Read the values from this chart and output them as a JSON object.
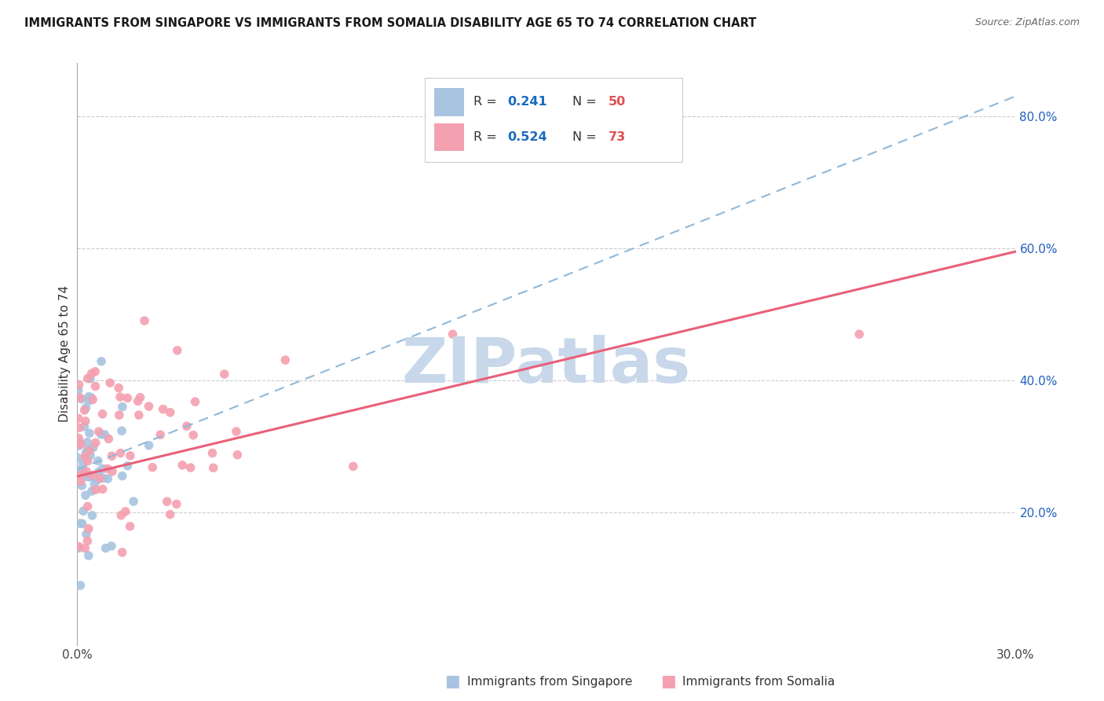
{
  "title": "IMMIGRANTS FROM SINGAPORE VS IMMIGRANTS FROM SOMALIA DISABILITY AGE 65 TO 74 CORRELATION CHART",
  "source": "Source: ZipAtlas.com",
  "ylabel": "Disability Age 65 to 74",
  "xlim": [
    0.0,
    0.3
  ],
  "ylim": [
    0.0,
    0.88
  ],
  "xtick_positions": [
    0.0,
    0.05,
    0.1,
    0.15,
    0.2,
    0.25,
    0.3
  ],
  "xticklabels": [
    "0.0%",
    "",
    "",
    "",
    "",
    "",
    "30.0%"
  ],
  "ytick_positions": [
    0.2,
    0.4,
    0.6,
    0.8
  ],
  "ytick_labels": [
    "20.0%",
    "40.0%",
    "60.0%",
    "80.0%"
  ],
  "singapore_color": "#a8c4e0",
  "somalia_color": "#f4a0b0",
  "singapore_line_color": "#90b8d8",
  "somalia_line_color": "#e8607a",
  "singapore_R": 0.241,
  "singapore_N": 50,
  "somalia_R": 0.524,
  "somalia_N": 73,
  "legend_R_color": "#1a6abf",
  "legend_N_color": "#e05050",
  "watermark": "ZIPatlas",
  "watermark_color": "#c8d8ea",
  "sing_line_x0": 0.0,
  "sing_line_y0": 0.265,
  "sing_line_x1": 0.3,
  "sing_line_y1": 0.83,
  "som_line_x0": 0.0,
  "som_line_y0": 0.255,
  "som_line_x1": 0.3,
  "som_line_y1": 0.595
}
